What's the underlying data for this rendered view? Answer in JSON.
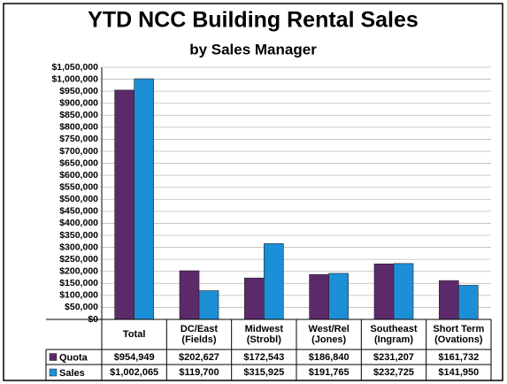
{
  "chart_data": {
    "type": "bar",
    "title": "YTD NCC Building Rental Sales",
    "subtitle": "by Sales Manager",
    "categories": [
      "Total",
      "DC/East\n(Fields)",
      "Midwest\n(Strobl)",
      "West/Rel\n(Jones)",
      "Southeast\n(Ingram)",
      "Short Term\n(Ovations)"
    ],
    "series": [
      {
        "name": "Quota",
        "color": "#5c2a6a",
        "values": [
          954949,
          202627,
          172543,
          186840,
          231207,
          161732
        ],
        "value_labels": [
          "$954,949",
          "$202,627",
          "$172,543",
          "$186,840",
          "$231,207",
          "$161,732"
        ]
      },
      {
        "name": "Sales",
        "color": "#1d8fd6",
        "values": [
          1002065,
          119700,
          315925,
          191765,
          232725,
          141950
        ],
        "value_labels": [
          "$1,002,065",
          "$119,700",
          "$315,925",
          "$191,765",
          "$232,725",
          "$141,950"
        ]
      }
    ],
    "ylim": [
      0,
      1050000
    ],
    "yticks": [
      {
        "value": 0,
        "label": "$0"
      },
      {
        "value": 50000,
        "label": "$50,000"
      },
      {
        "value": 100000,
        "label": "$100,000"
      },
      {
        "value": 150000,
        "label": "$150,000"
      },
      {
        "value": 200000,
        "label": "$200,000"
      },
      {
        "value": 250000,
        "label": "$250,000"
      },
      {
        "value": 300000,
        "label": "$300,000"
      },
      {
        "value": 350000,
        "label": "$350,000"
      },
      {
        "value": 400000,
        "label": "$400,000"
      },
      {
        "value": 450000,
        "label": "$450,000"
      },
      {
        "value": 500000,
        "label": "$500,000"
      },
      {
        "value": 550000,
        "label": "$550,000"
      },
      {
        "value": 600000,
        "label": "$600,000"
      },
      {
        "value": 650000,
        "label": "$650,000"
      },
      {
        "value": 700000,
        "label": "$700,000"
      },
      {
        "value": 750000,
        "label": "$750,000"
      },
      {
        "value": 800000,
        "label": "$800,000"
      },
      {
        "value": 850000,
        "label": "$850,000"
      },
      {
        "value": 900000,
        "label": "$900,000"
      },
      {
        "value": 950000,
        "label": "$950,000"
      },
      {
        "value": 1000000,
        "label": "$1,000,000"
      },
      {
        "value": 1050000,
        "label": "$1,050,000"
      }
    ],
    "grid": true
  }
}
